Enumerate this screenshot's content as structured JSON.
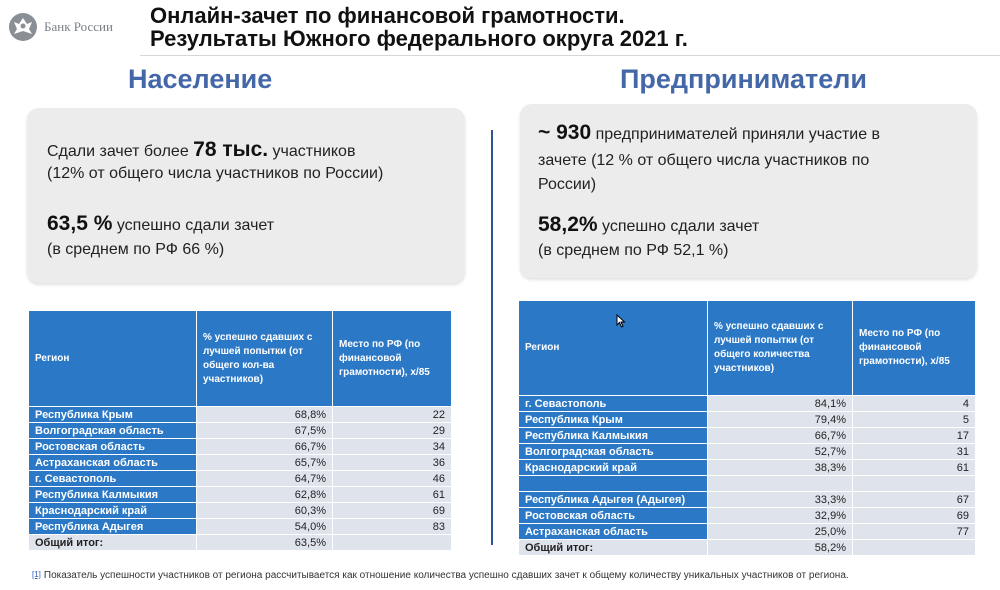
{
  "brand": {
    "name": "Банк России"
  },
  "title": {
    "line1": "Онлайн-зачет по финансовой грамотности.",
    "line2": "Результаты Южного федерального округа 2021 г."
  },
  "left": {
    "heading": "Население",
    "card": {
      "line1_pre": "Сдали зачет более ",
      "line1_bold": "78 тыс.",
      "line1_post": " участников",
      "line2": "(12% от общего числа участников по России)",
      "line3_bold": "63,5 %",
      "line3_post": " успешно сдали зачет",
      "line4": "(в среднем по РФ 66 %)"
    },
    "table": {
      "headers": [
        "Регион",
        "% успешно сдавших с лучшей попытки (от общего кол-ва участников)",
        "Место по РФ (по финансовой грамотности), х/85"
      ],
      "rows": [
        {
          "region": "Республика Крым",
          "pct": "68,8%",
          "place": "22"
        },
        {
          "region": "Волгоградская область",
          "pct": "67,5%",
          "place": "29"
        },
        {
          "region": "Ростовская область",
          "pct": "66,7%",
          "place": "34"
        },
        {
          "region": "Астраханская область",
          "pct": "65,7%",
          "place": "36"
        },
        {
          "region": "г. Севастополь",
          "pct": "64,7%",
          "place": "46"
        },
        {
          "region": "Республика Калмыкия",
          "pct": "62,8%",
          "place": "61"
        },
        {
          "region": "Краснодарский край",
          "pct": "60,3%",
          "place": "69"
        },
        {
          "region": "Республика Адыгея",
          "pct": "54,0%",
          "place": "83"
        }
      ],
      "total": {
        "label": "Общий итог:",
        "pct": "63,5%",
        "place": ""
      }
    }
  },
  "right": {
    "heading": "Предприниматели",
    "card": {
      "line1_bold": "~ 930",
      "line1_post": " предпринимателей приняли участие в",
      "line2": "зачете (12 % от общего числа участников по",
      "line3": "России)",
      "line4_bold": "58,2%",
      "line4_post": " успешно сдали зачет",
      "line5": "(в среднем по РФ 52,1 %)"
    },
    "table": {
      "headers": [
        "Регион",
        "% успешно сдавших с лучшей попытки (от общего количества участников)",
        "Место по РФ (по финансовой грамотности), х/85"
      ],
      "rows": [
        {
          "region": "г. Севастополь",
          "pct": "84,1%",
          "place": "4"
        },
        {
          "region": "Республика Крым",
          "pct": "79,4%",
          "place": "5"
        },
        {
          "region": "Республика Калмыкия",
          "pct": "66,7%",
          "place": "17"
        },
        {
          "region": "Волгоградская область",
          "pct": "52,7%",
          "place": "31"
        },
        {
          "region": "Краснодарский край",
          "pct": "38,3%",
          "place": "61"
        },
        {
          "region": "Республика Адыгея (Адыгея)",
          "pct": "33,3%",
          "place": "67"
        },
        {
          "region": "Ростовская область",
          "pct": "32,9%",
          "place": "69"
        },
        {
          "region": "Астраханская область",
          "pct": "25,0%",
          "place": "77"
        }
      ],
      "total": {
        "label": "Общий итог:",
        "pct": "58,2%",
        "place": ""
      }
    }
  },
  "footnote": {
    "ref": "[1]",
    "text": "Показатель успешности участников от региона рассчитывается как отношение количества успешно сдавших зачет к общему количеству уникальных участников от региона."
  },
  "colors": {
    "accent": "#4467a8",
    "table_header": "#2b78c6",
    "table_cell": "#dfe3ec",
    "card_bg": "#ececec"
  }
}
